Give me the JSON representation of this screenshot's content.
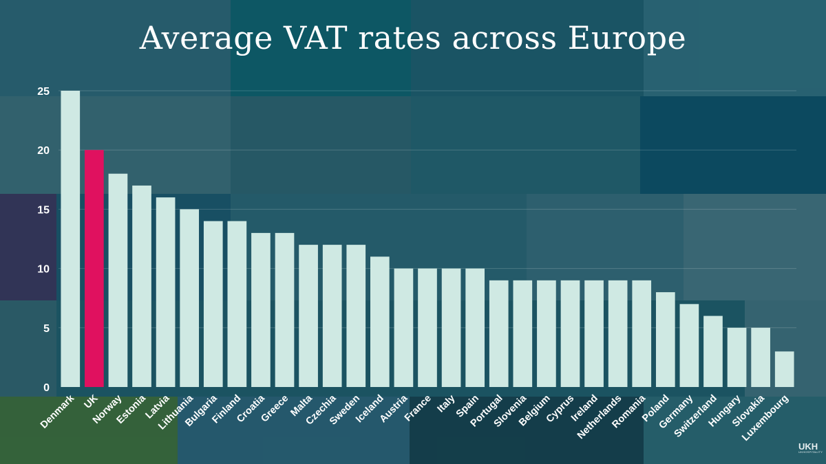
{
  "chart_data": {
    "type": "bar",
    "title": "Average VAT rates across Europe",
    "xlabel": "",
    "ylabel": "",
    "ylim": [
      0,
      25
    ],
    "yticks": [
      0,
      5,
      10,
      15,
      20,
      25
    ],
    "grid": true,
    "categories": [
      "Denmark",
      "UK",
      "Norway",
      "Estonia",
      "Latvia",
      "Lithuania",
      "Bulgaria",
      "Finland",
      "Croatia",
      "Greece",
      "Malta",
      "Czechia",
      "Sweden",
      "Iceland",
      "Austria",
      "France",
      "Italy",
      "Spain",
      "Portugal",
      "Slovenia",
      "Belgium",
      "Cyprus",
      "Ireland",
      "Netherlands",
      "Romania",
      "Poland",
      "Germany",
      "Switzerland",
      "Hungary",
      "Slovakia",
      "Luxembourg"
    ],
    "values": [
      25,
      20,
      18,
      17,
      16,
      15,
      14,
      14,
      13,
      13,
      12,
      12,
      12,
      11,
      10,
      10,
      10,
      10,
      9,
      9,
      9,
      9,
      9,
      9,
      9,
      8,
      7,
      6,
      5,
      5,
      3
    ],
    "bar_color": "#cfe9e3",
    "highlight_category": "UK",
    "highlight_color": "#e0115f"
  },
  "logo": {
    "main": "UKH",
    "sub": "UKHOSPITALITY"
  }
}
